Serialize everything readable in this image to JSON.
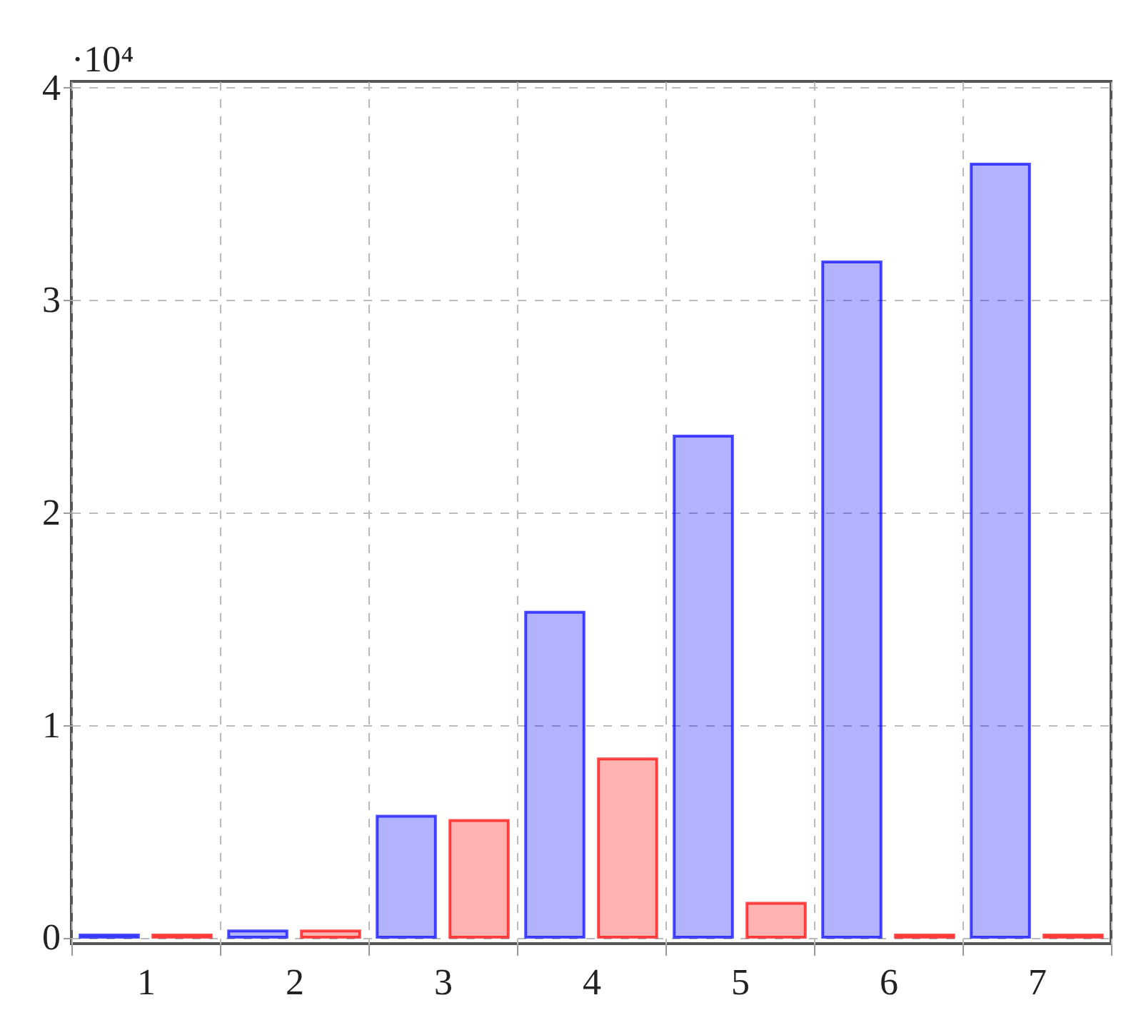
{
  "chart_data": {
    "type": "bar",
    "categories": [
      "1",
      "2",
      "3",
      "4",
      "5",
      "6",
      "7"
    ],
    "series": [
      {
        "color": "#0000ff",
        "values": [
          0.01,
          0.03,
          0.57,
          1.53,
          2.36,
          3.18,
          3.64
        ]
      },
      {
        "color": "#ff0000",
        "values": [
          0.01,
          0.03,
          0.55,
          0.84,
          0.16,
          0.01,
          0.01
        ]
      }
    ],
    "ylim": [
      -0.03,
      4.03
    ],
    "yticks": [
      0,
      1,
      2,
      3,
      4
    ],
    "grid": true,
    "legend": false,
    "annotations": [
      "·10⁴"
    ]
  }
}
